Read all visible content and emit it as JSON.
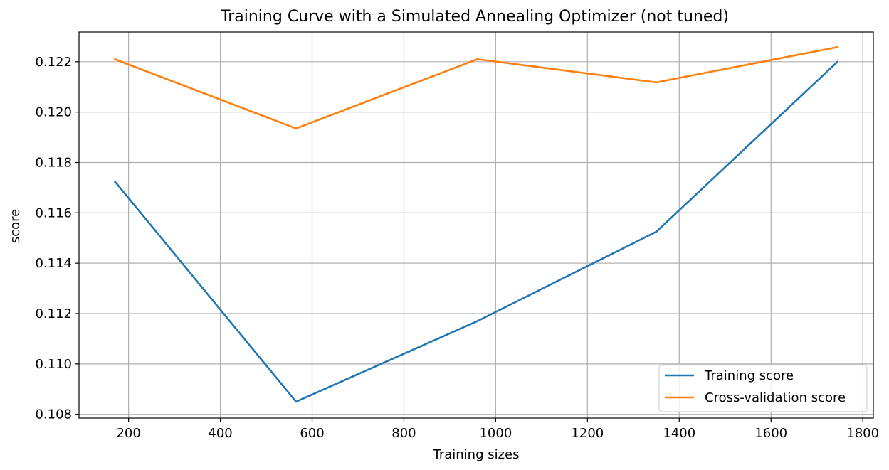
{
  "chart_data": {
    "type": "line",
    "title": "Training Curve with a Simulated Annealing Optimizer (not tuned)",
    "xlabel": "Training sizes",
    "ylabel": "score",
    "x": [
      170,
      565,
      960,
      1350,
      1745
    ],
    "series": [
      {
        "name": "Training score",
        "color": "#1f77b4",
        "values": [
          0.11725,
          0.1085,
          0.1117,
          0.11525,
          0.122
        ]
      },
      {
        "name": "Cross-validation score",
        "color": "#ff7f0e",
        "values": [
          0.1221,
          0.11935,
          0.1221,
          0.12118,
          0.12258
        ]
      }
    ],
    "xlim": [
      92,
      1823
    ],
    "ylim": [
      0.10785,
      0.12318
    ],
    "xticks": [
      200,
      400,
      600,
      800,
      1000,
      1200,
      1400,
      1600,
      1800
    ],
    "xtick_labels": [
      "200",
      "400",
      "600",
      "800",
      "1000",
      "1200",
      "1400",
      "1600",
      "1800"
    ],
    "yticks": [
      0.108,
      0.11,
      0.112,
      0.114,
      0.116,
      0.118,
      0.12,
      0.122
    ],
    "ytick_labels": [
      "0.108",
      "0.110",
      "0.112",
      "0.114",
      "0.116",
      "0.118",
      "0.120",
      "0.122"
    ],
    "grid": true,
    "legend_position": "lower-right"
  }
}
